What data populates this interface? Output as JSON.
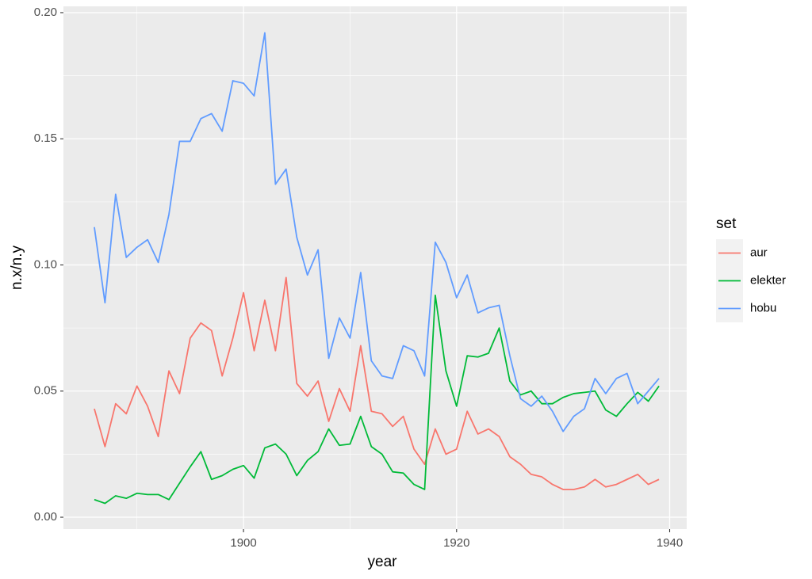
{
  "chart_data": {
    "type": "line",
    "x_label": "year",
    "y_label": "n.x/n.y",
    "legend_title": "set",
    "legend_position": "right",
    "panel_background": "#EBEBEB",
    "grid": true,
    "x": [
      1886,
      1887,
      1888,
      1889,
      1890,
      1891,
      1892,
      1893,
      1894,
      1895,
      1896,
      1897,
      1898,
      1899,
      1900,
      1901,
      1902,
      1903,
      1904,
      1905,
      1906,
      1907,
      1908,
      1909,
      1910,
      1911,
      1912,
      1913,
      1914,
      1915,
      1916,
      1917,
      1918,
      1919,
      1920,
      1921,
      1922,
      1923,
      1924,
      1925,
      1926,
      1927,
      1928,
      1929,
      1930,
      1931,
      1932,
      1933,
      1934,
      1935,
      1936,
      1937,
      1938,
      1939
    ],
    "xlim": [
      1883.1,
      1941.6
    ],
    "xticks": [
      1900,
      1920,
      1940
    ],
    "x_minor_grid": [
      1890,
      1910,
      1930
    ],
    "ylim": [
      -0.0047,
      0.2025
    ],
    "yticks": [
      {
        "value": 0,
        "label": "0.00"
      },
      {
        "value": 0.05,
        "label": "0.05"
      },
      {
        "value": 0.1,
        "label": "0.10"
      },
      {
        "value": 0.15,
        "label": "0.15"
      },
      {
        "value": 0.2,
        "label": "0.20"
      }
    ],
    "y_minor_grid": [
      0.025,
      0.075,
      0.125,
      0.175
    ],
    "series": [
      {
        "name": "aur",
        "color": "#F8766D",
        "values": [
          0.043,
          0.028,
          0.045,
          0.041,
          0.052,
          0.044,
          0.032,
          0.058,
          0.049,
          0.071,
          0.077,
          0.074,
          0.056,
          0.071,
          0.089,
          0.066,
          0.086,
          0.066,
          0.095,
          0.053,
          0.048,
          0.054,
          0.038,
          0.051,
          0.042,
          0.068,
          0.042,
          0.041,
          0.036,
          0.04,
          0.027,
          0.021,
          0.035,
          0.025,
          0.027,
          0.042,
          0.033,
          0.035,
          0.032,
          0.024,
          0.021,
          0.017,
          0.016,
          0.013,
          0.011,
          0.011,
          0.012,
          0.015,
          0.012,
          0.013,
          0.015,
          0.017,
          0.013,
          0.015
        ]
      },
      {
        "name": "elekter",
        "color": "#00BA38",
        "values": [
          0.007,
          0.0055,
          0.0085,
          0.0075,
          0.0095,
          0.009,
          0.009,
          0.007,
          0.0135,
          0.02,
          0.026,
          0.015,
          0.0165,
          0.019,
          0.0205,
          0.0155,
          0.0275,
          0.029,
          0.025,
          0.0165,
          0.0225,
          0.026,
          0.035,
          0.0285,
          0.029,
          0.04,
          0.028,
          0.025,
          0.018,
          0.0175,
          0.013,
          0.011,
          0.088,
          0.058,
          0.044,
          0.064,
          0.0635,
          0.065,
          0.075,
          0.054,
          0.0485,
          0.05,
          0.045,
          0.045,
          0.0475,
          0.049,
          0.0495,
          0.05,
          0.0425,
          0.04,
          0.045,
          0.0495,
          0.046,
          0.052
        ]
      },
      {
        "name": "hobu",
        "color": "#619CFF",
        "values": [
          0.115,
          0.085,
          0.128,
          0.103,
          0.107,
          0.11,
          0.101,
          0.12,
          0.149,
          0.149,
          0.158,
          0.16,
          0.153,
          0.173,
          0.172,
          0.167,
          0.192,
          0.132,
          0.138,
          0.111,
          0.096,
          0.106,
          0.063,
          0.079,
          0.071,
          0.097,
          0.062,
          0.056,
          0.055,
          0.068,
          0.066,
          0.056,
          0.109,
          0.101,
          0.087,
          0.096,
          0.081,
          0.083,
          0.084,
          0.064,
          0.047,
          0.044,
          0.048,
          0.042,
          0.034,
          0.04,
          0.043,
          0.055,
          0.049,
          0.055,
          0.057,
          0.045,
          0.05,
          0.055
        ]
      }
    ]
  }
}
